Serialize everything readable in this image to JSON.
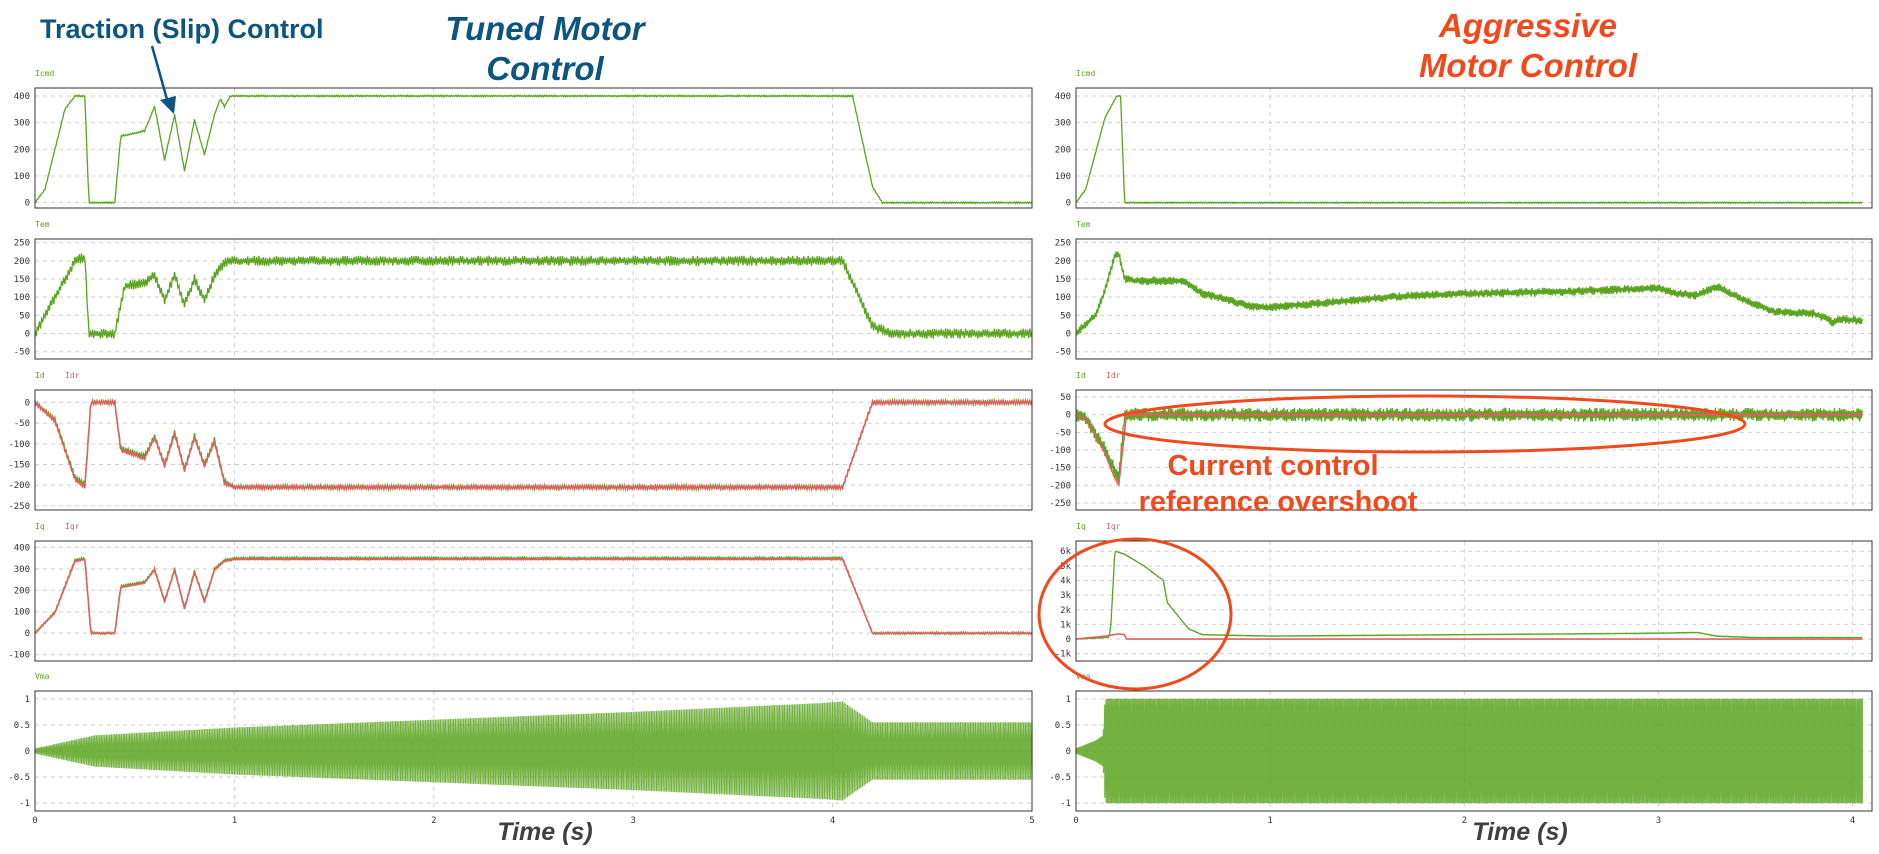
{
  "annotations": {
    "traction": "Traction (Slip) Control",
    "tuned_title": [
      "Tuned Motor",
      "Control"
    ],
    "aggressive_title": [
      "Aggressive",
      "Motor Control"
    ],
    "current_control": [
      "Current control",
      "reference overshoot"
    ]
  },
  "colors": {
    "trace_green": "#5aa51f",
    "trace_red": "#e06060",
    "tuned_title": "#0b5580",
    "aggressive_title": "#f04a1c",
    "axis_label": "#404040",
    "frame": "#333333",
    "grid": "#d0d0d0"
  },
  "chart_data": [
    {
      "id": "left",
      "type": "line",
      "xlabel": "Time (s)",
      "xlim": [
        0,
        5
      ],
      "xticks": [
        0,
        1,
        2,
        3,
        4,
        5
      ],
      "panels": [
        {
          "ylim": [
            -20,
            430
          ],
          "yticks": [
            0,
            100,
            200,
            300,
            400
          ],
          "yticklabels": [
            "0",
            "100",
            "200",
            "300",
            "400"
          ],
          "series": [
            {
              "name": "Icmd",
              "color": "green",
              "x": [
                0,
                0.05,
                0.15,
                0.2,
                0.25,
                0.27,
                0.3,
                0.4,
                0.43,
                0.5,
                0.55,
                0.6,
                0.65,
                0.7,
                0.75,
                0.8,
                0.85,
                0.9,
                0.93,
                0.95,
                0.98,
                1.0,
                4.1,
                4.2,
                4.25,
                5.0
              ],
              "y": [
                0,
                50,
                350,
                400,
                400,
                0,
                0,
                0,
                250,
                260,
                270,
                360,
                160,
                330,
                120,
                310,
                180,
                330,
                390,
                360,
                400,
                400,
                400,
                60,
                0,
                0
              ],
              "noise": 3
            }
          ]
        },
        {
          "ylim": [
            -70,
            260
          ],
          "yticks": [
            -50,
            0,
            50,
            100,
            150,
            200,
            250
          ],
          "yticklabels": [
            "-50",
            "0",
            "50",
            "100",
            "150",
            "200",
            "250"
          ],
          "series": [
            {
              "name": "Tem",
              "color": "green",
              "x": [
                0,
                0.2,
                0.25,
                0.27,
                0.3,
                0.4,
                0.45,
                0.55,
                0.6,
                0.65,
                0.7,
                0.75,
                0.8,
                0.85,
                0.9,
                0.95,
                1.0,
                4.05,
                4.2,
                4.3,
                5.0
              ],
              "y": [
                0,
                200,
                210,
                0,
                0,
                0,
                130,
                140,
                160,
                90,
                160,
                80,
                150,
                90,
                160,
                195,
                200,
                200,
                20,
                0,
                0
              ],
              "noise": 14
            }
          ]
        },
        {
          "ylim": [
            -260,
            30
          ],
          "yticks": [
            -250,
            -200,
            -150,
            -100,
            -50,
            0
          ],
          "yticklabels": [
            "-250",
            "-200",
            "-150",
            "-100",
            "-50",
            "0"
          ],
          "series": [
            {
              "name": "Id",
              "color": "green",
              "x": [
                0,
                0.1,
                0.2,
                0.25,
                0.28,
                0.4,
                0.43,
                0.55,
                0.6,
                0.65,
                0.7,
                0.75,
                0.8,
                0.85,
                0.9,
                0.95,
                1.0,
                4.05,
                4.2,
                5.0
              ],
              "y": [
                0,
                -40,
                -180,
                -200,
                0,
                0,
                -110,
                -130,
                -80,
                -150,
                -70,
                -160,
                -80,
                -150,
                -90,
                -190,
                -205,
                -205,
                0,
                0
              ],
              "noise": 6
            },
            {
              "name": "Idr",
              "color": "red",
              "x": [
                0,
                0.1,
                0.2,
                0.25,
                0.28,
                0.4,
                0.43,
                0.55,
                0.6,
                0.65,
                0.7,
                0.75,
                0.8,
                0.85,
                0.9,
                0.95,
                1.0,
                4.05,
                4.2,
                5.0
              ],
              "y": [
                0,
                -45,
                -185,
                -205,
                0,
                0,
                -115,
                -135,
                -85,
                -155,
                -75,
                -165,
                -85,
                -155,
                -95,
                -195,
                -205,
                -205,
                0,
                0
              ],
              "noise": 4
            }
          ]
        },
        {
          "ylim": [
            -130,
            430
          ],
          "yticks": [
            -100,
            0,
            100,
            200,
            300,
            400
          ],
          "yticklabels": [
            "-100",
            "0",
            "100",
            "200",
            "300",
            "400"
          ],
          "series": [
            {
              "name": "Iq",
              "color": "green",
              "x": [
                0,
                0.1,
                0.2,
                0.25,
                0.28,
                0.4,
                0.43,
                0.5,
                0.55,
                0.6,
                0.65,
                0.7,
                0.75,
                0.8,
                0.85,
                0.9,
                0.95,
                1.0,
                4.05,
                4.2,
                5.0
              ],
              "y": [
                0,
                100,
                340,
                350,
                0,
                0,
                220,
                230,
                240,
                300,
                150,
                300,
                120,
                290,
                150,
                300,
                340,
                350,
                350,
                0,
                0
              ],
              "noise": 6
            },
            {
              "name": "Iqr",
              "color": "red",
              "x": [
                0,
                0.1,
                0.2,
                0.25,
                0.28,
                0.4,
                0.43,
                0.5,
                0.55,
                0.6,
                0.65,
                0.7,
                0.75,
                0.8,
                0.85,
                0.9,
                0.95,
                1.0,
                4.05,
                4.2,
                5.0
              ],
              "y": [
                0,
                95,
                335,
                345,
                0,
                0,
                215,
                225,
                235,
                295,
                145,
                295,
                115,
                285,
                145,
                295,
                335,
                345,
                345,
                0,
                0
              ],
              "noise": 3
            }
          ]
        },
        {
          "ylim": [
            -1.15,
            1.15
          ],
          "yticks": [
            -1,
            -0.5,
            0,
            0.5,
            1
          ],
          "yticklabels": [
            "-1",
            "-0.5",
            "0",
            "0.5",
            "1"
          ],
          "series": [
            {
              "name": "Vma",
              "color": "green",
              "kind": "envelope",
              "x": [
                0,
                0.3,
                1.0,
                2.0,
                3.0,
                3.95,
                4.05,
                4.2,
                5.0
              ],
              "upper": [
                0.05,
                0.3,
                0.45,
                0.6,
                0.75,
                0.92,
                0.95,
                0.55,
                0.55
              ],
              "lower": [
                -0.05,
                -0.3,
                -0.45,
                -0.6,
                -0.75,
                -0.92,
                -0.95,
                -0.55,
                -0.55
              ]
            }
          ]
        }
      ]
    },
    {
      "id": "right",
      "type": "line",
      "xlabel": "Time (s)",
      "xlim": [
        0,
        4.1
      ],
      "xticks": [
        0,
        1,
        2,
        3,
        4
      ],
      "panels": [
        {
          "ylim": [
            -20,
            430
          ],
          "yticks": [
            0,
            100,
            200,
            300,
            400
          ],
          "yticklabels": [
            "0",
            "100",
            "200",
            "300",
            "400"
          ],
          "series": [
            {
              "name": "Icmd",
              "color": "green",
              "x": [
                0,
                0.05,
                0.15,
                0.21,
                0.23,
                0.25,
                4.05
              ],
              "y": [
                0,
                50,
                320,
                400,
                400,
                0,
                0
              ],
              "noise": 2
            }
          ]
        },
        {
          "ylim": [
            -70,
            260
          ],
          "yticks": [
            -50,
            0,
            50,
            100,
            150,
            200,
            250
          ],
          "yticklabels": [
            "-50",
            "0",
            "50",
            "100",
            "150",
            "200",
            "250"
          ],
          "series": [
            {
              "name": "Tem",
              "color": "green",
              "x": [
                0,
                0.1,
                0.15,
                0.2,
                0.22,
                0.25,
                0.3,
                0.55,
                0.65,
                0.8,
                0.9,
                1.0,
                1.3,
                1.6,
                2.0,
                2.5,
                3.0,
                3.1,
                3.2,
                3.3,
                3.45,
                3.6,
                3.8,
                3.85,
                3.9,
                3.95,
                4.05
              ],
              "y": [
                0,
                50,
                120,
                215,
                220,
                150,
                145,
                145,
                110,
                90,
                75,
                72,
                85,
                100,
                110,
                115,
                125,
                110,
                105,
                130,
                90,
                60,
                55,
                45,
                30,
                40,
                35
              ],
              "noise": 12
            }
          ]
        },
        {
          "ylim": [
            -270,
            70
          ],
          "yticks": [
            -250,
            -200,
            -150,
            -100,
            -50,
            0,
            50
          ],
          "yticklabels": [
            "-250",
            "-200",
            "-150",
            "-100",
            "-50",
            "0",
            "50"
          ],
          "series": [
            {
              "name": "Id",
              "color": "green",
              "x": [
                0,
                0.05,
                0.15,
                0.22,
                0.25,
                0.5,
                1.0,
                2.0,
                3.0,
                3.3,
                3.5,
                4.05
              ],
              "y": [
                0,
                -10,
                -100,
                -180,
                0,
                0,
                0,
                0,
                0,
                0,
                0,
                0
              ],
              "noise": 20
            },
            {
              "name": "Idr",
              "color": "red",
              "x": [
                0,
                0.05,
                0.15,
                0.2,
                0.22,
                0.24,
                0.26,
                4.05
              ],
              "y": [
                0,
                -10,
                -110,
                -180,
                -200,
                -100,
                0,
                0
              ],
              "noise": 2
            }
          ]
        },
        {
          "ylim": [
            -1500,
            6700
          ],
          "yticks": [
            -1000,
            0,
            1000,
            2000,
            3000,
            4000,
            5000,
            6000
          ],
          "yticklabels": [
            "-1k",
            "0",
            "1k",
            "2k",
            "3k",
            "4k",
            "5k",
            "6k"
          ],
          "series": [
            {
              "name": "Iq",
              "color": "green",
              "x": [
                0,
                0.1,
                0.17,
                0.18,
                0.2,
                0.25,
                0.35,
                0.45,
                0.47,
                0.5,
                0.58,
                0.65,
                1.0,
                2.0,
                3.0,
                3.2,
                3.3,
                3.5,
                4.05
              ],
              "y": [
                0,
                60,
                120,
                1000,
                6000,
                5800,
                5000,
                4000,
                2500,
                2000,
                700,
                300,
                200,
                300,
                400,
                450,
                200,
                100,
                100
              ],
              "noise": 20
            },
            {
              "name": "Iqr",
              "color": "red",
              "x": [
                0,
                0.15,
                0.22,
                0.25,
                0.26,
                4.05
              ],
              "y": [
                0,
                200,
                350,
                300,
                0,
                0
              ],
              "noise": 5
            }
          ]
        },
        {
          "ylim": [
            -1.15,
            1.15
          ],
          "yticks": [
            -1,
            -0.5,
            0,
            0.5,
            1
          ],
          "yticklabels": [
            "-1",
            "-0.5",
            "0",
            "0.5",
            "1"
          ],
          "series": [
            {
              "name": "Vma",
              "color": "green",
              "kind": "envelope",
              "x": [
                0,
                0.1,
                0.14,
                0.15,
                0.45,
                0.46,
                4.05
              ],
              "upper": [
                0.05,
                0.2,
                0.3,
                1.0,
                1.0,
                1.0,
                1.0
              ],
              "lower": [
                -0.05,
                -0.2,
                -0.3,
                -1.0,
                -1.0,
                -1.0,
                -1.0
              ]
            }
          ]
        }
      ]
    }
  ]
}
